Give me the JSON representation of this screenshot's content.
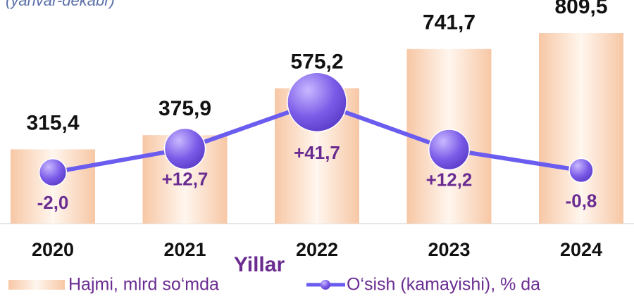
{
  "chart_data": {
    "type": "bar",
    "subtitle": "(yanvar-dekabr)",
    "x_label": "Yillar",
    "categories": [
      "2020",
      "2021",
      "2022",
      "2023",
      "2024"
    ],
    "ylim": [
      0,
      950
    ],
    "y2lim": [
      -40,
      100
    ],
    "series": [
      {
        "name": "Hajmi, mlrd so‘mda",
        "type": "bar",
        "color": "#f9cfae",
        "values": [
          315.4,
          375.9,
          575.2,
          741.7,
          809.5
        ],
        "value_labels": [
          "315,4",
          "375,9",
          "575,2",
          "741,7",
          "809,5"
        ]
      },
      {
        "name": "O‘sish (kamayishi), % da",
        "type": "line",
        "axis": "y2",
        "color": "#6b5cf0",
        "values": [
          -2.0,
          12.7,
          41.7,
          12.2,
          -0.8
        ],
        "value_labels": [
          "-2,0",
          "+12,7",
          "+41,7",
          "+12,2",
          "-0,8"
        ]
      }
    ]
  }
}
